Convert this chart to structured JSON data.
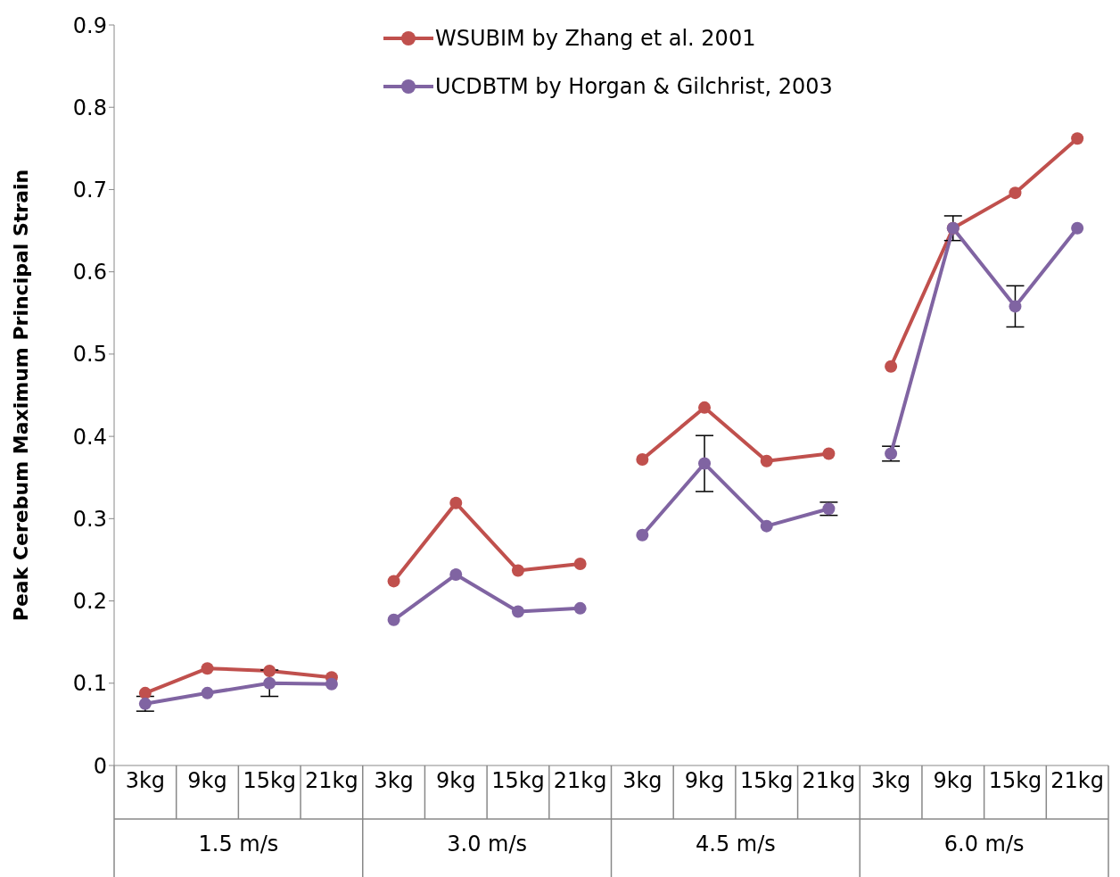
{
  "chart_data": {
    "type": "line",
    "ylabel": "Peak Cerebum Maximum Principal Strain",
    "categories": [
      "3kg",
      "9kg",
      "15kg",
      "21kg",
      "3kg",
      "9kg",
      "15kg",
      "21kg",
      "3kg",
      "9kg",
      "15kg",
      "21kg",
      "3kg",
      "9kg",
      "15kg",
      "21kg"
    ],
    "annotations": [
      "1.5 m/s",
      "3.0 m/s",
      "4.5 m/s",
      "6.0 m/s"
    ],
    "series": [
      {
        "name": "WSUBIM by Zhang et al. 2001",
        "color": "#c0504d",
        "values": [
          0.088,
          0.118,
          0.115,
          0.107,
          0.224,
          0.319,
          0.237,
          0.245,
          0.372,
          0.435,
          0.37,
          0.379,
          0.485,
          0.653,
          0.696,
          0.762
        ]
      },
      {
        "name": "UCDBTM by Horgan & Gilchrist, 2003",
        "color": "#8064a2",
        "values": [
          0.075,
          0.088,
          0.1,
          0.099,
          0.177,
          0.232,
          0.187,
          0.191,
          0.28,
          0.367,
          0.291,
          0.312,
          0.379,
          0.653,
          0.558,
          0.653
        ],
        "errors": [
          0.009,
          null,
          0.016,
          null,
          null,
          null,
          null,
          null,
          null,
          0.034,
          null,
          0.008,
          0.009,
          0.015,
          0.025,
          null
        ]
      }
    ],
    "ylim": [
      0,
      0.9
    ],
    "yticks": [
      0,
      0.1,
      0.2,
      0.3,
      0.4,
      0.5,
      0.6,
      0.7,
      0.8,
      0.9
    ],
    "grid": false,
    "legend": "top",
    "marker": "circle",
    "line_style": "solid"
  }
}
